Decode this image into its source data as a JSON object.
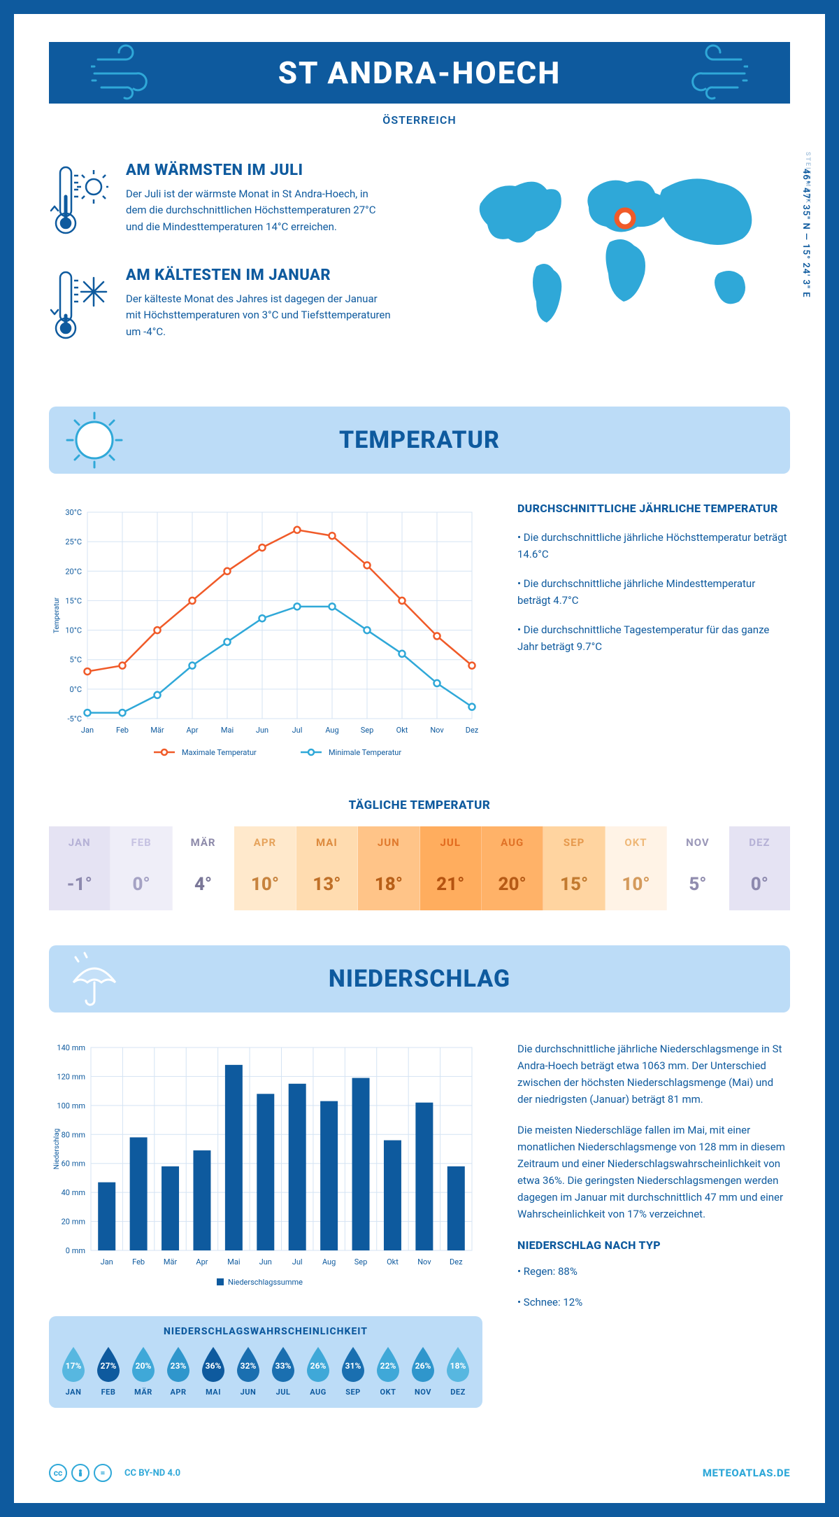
{
  "header": {
    "title": "ST ANDRA-HOECH",
    "subtitle": "ÖSTERREICH",
    "region": "STEIERMARK",
    "coords": "46° 47' 35\" N — 15° 24' 3\" E"
  },
  "warm": {
    "title": "AM WÄRMSTEN IM JULI",
    "text": "Der Juli ist der wärmste Monat in St Andra-Hoech, in dem die durchschnittlichen Höchsttemperaturen 27°C und die Mindesttemperaturen 14°C erreichen."
  },
  "cold": {
    "title": "AM KÄLTESTEN IM JANUAR",
    "text": "Der kälteste Monat des Jahres ist dagegen der Januar mit Höchsttemperaturen von 3°C und Tiefsttemperaturen um -4°C."
  },
  "temp_section": {
    "title": "TEMPERATUR",
    "chart": {
      "type": "line",
      "months": [
        "Jan",
        "Feb",
        "Mär",
        "Apr",
        "Mai",
        "Jun",
        "Jul",
        "Aug",
        "Sep",
        "Okt",
        "Nov",
        "Dez"
      ],
      "max_series": {
        "label": "Maximale Temperatur",
        "color": "#f05a28",
        "values": [
          3,
          4,
          10,
          15,
          20,
          24,
          27,
          26,
          21,
          15,
          9,
          4
        ]
      },
      "min_series": {
        "label": "Minimale Temperatur",
        "color": "#2fa8d8",
        "values": [
          -4,
          -4,
          -1,
          4,
          8,
          12,
          14,
          14,
          10,
          6,
          1,
          -3
        ]
      },
      "ylabel": "Temperatur",
      "ylim": [
        -5,
        30
      ],
      "ytick_step": 5,
      "grid_color": "#d4e3f3",
      "background_color": "#ffffff"
    },
    "side": {
      "title": "DURCHSCHNITTLICHE JÄHRLICHE TEMPERATUR",
      "bullets": [
        "• Die durchschnittliche jährliche Höchsttemperatur beträgt 14.6°C",
        "• Die durchschnittliche jährliche Mindesttemperatur beträgt 4.7°C",
        "• Die durchschnittliche Tagestemperatur für das ganze Jahr beträgt 9.7°C"
      ]
    },
    "daily": {
      "title": "TÄGLICHE TEMPERATUR",
      "months": [
        "JAN",
        "FEB",
        "MÄR",
        "APR",
        "MAI",
        "JUN",
        "JUL",
        "AUG",
        "SEP",
        "OKT",
        "NOV",
        "DEZ"
      ],
      "values": [
        "-1°",
        "0°",
        "4°",
        "10°",
        "13°",
        "18°",
        "21°",
        "20°",
        "15°",
        "10°",
        "5°",
        "0°"
      ],
      "month_colors": [
        "#b5b1d6",
        "#c6c2e2",
        "#8d8aaa",
        "#e6a35c",
        "#dd8b3f",
        "#e07a2e",
        "#e26a1e",
        "#e07227",
        "#e6994d",
        "#efb878",
        "#9a97b8",
        "#b5b1d6"
      ],
      "bg_colors": [
        "#e5e3f3",
        "#efeef8",
        "#ffffff",
        "#ffe9cc",
        "#ffdcb0",
        "#ffc488",
        "#ffad5e",
        "#ffb268",
        "#ffd4a0",
        "#fff3e6",
        "#ffffff",
        "#e5e3f3"
      ],
      "val_colors": [
        "#8d89ae",
        "#a5a2c4",
        "#7a7798",
        "#c7833e",
        "#c07028",
        "#b85f18",
        "#b55310",
        "#b65a16",
        "#c27a2f",
        "#d49a5c",
        "#908cae",
        "#8d89ae"
      ]
    }
  },
  "precip_section": {
    "title": "NIEDERSCHLAG",
    "chart": {
      "type": "bar",
      "months": [
        "Jan",
        "Feb",
        "Mär",
        "Apr",
        "Mai",
        "Jun",
        "Jul",
        "Aug",
        "Sep",
        "Okt",
        "Nov",
        "Dez"
      ],
      "values": [
        47,
        78,
        58,
        69,
        128,
        108,
        115,
        103,
        119,
        76,
        102,
        58
      ],
      "ylabel": "Niederschlag",
      "ylim": [
        0,
        140
      ],
      "ytick_step": 20,
      "bar_color": "#0e5a9e",
      "grid_color": "#d4e3f3",
      "legend": "Niederschlagssumme"
    },
    "side": {
      "p1": "Die durchschnittliche jährliche Niederschlagsmenge in St Andra-Hoech beträgt etwa 1063 mm. Der Unterschied zwischen der höchsten Niederschlagsmenge (Mai) und der niedrigsten (Januar) beträgt 81 mm.",
      "p2": "Die meisten Niederschläge fallen im Mai, mit einer monatlichen Niederschlagsmenge von 128 mm in diesem Zeitraum und einer Niederschlagswahrscheinlichkeit von etwa 36%. Die geringsten Niederschlagsmengen werden dagegen im Januar mit durchschnittlich 47 mm und einer Wahrscheinlichkeit von 17% verzeichnet.",
      "type_title": "NIEDERSCHLAG NACH TYP",
      "type_bullets": [
        "• Regen: 88%",
        "• Schnee: 12%"
      ]
    },
    "prob": {
      "title": "NIEDERSCHLAGSWAHRSCHEINLICHKEIT",
      "months": [
        "JAN",
        "FEB",
        "MÄR",
        "APR",
        "MAI",
        "JUN",
        "JUL",
        "AUG",
        "SEP",
        "OKT",
        "NOV",
        "DEZ"
      ],
      "values": [
        "17%",
        "27%",
        "20%",
        "23%",
        "36%",
        "32%",
        "33%",
        "26%",
        "31%",
        "22%",
        "26%",
        "18%"
      ],
      "colors": [
        "#57b7e0",
        "#0e5a9e",
        "#3fa8d8",
        "#2f96cc",
        "#0e5a9e",
        "#1a6fb0",
        "#1a6fb0",
        "#3fa8d8",
        "#1a6fb0",
        "#3fa8d8",
        "#2f96cc",
        "#57b7e0"
      ]
    }
  },
  "footer": {
    "license": "CC BY-ND 4.0",
    "site": "METEOATLAS.DE"
  },
  "colors": {
    "primary": "#0e5a9e",
    "light": "#bcdcf7",
    "accent": "#2fa8d8",
    "orange": "#f05a28"
  }
}
